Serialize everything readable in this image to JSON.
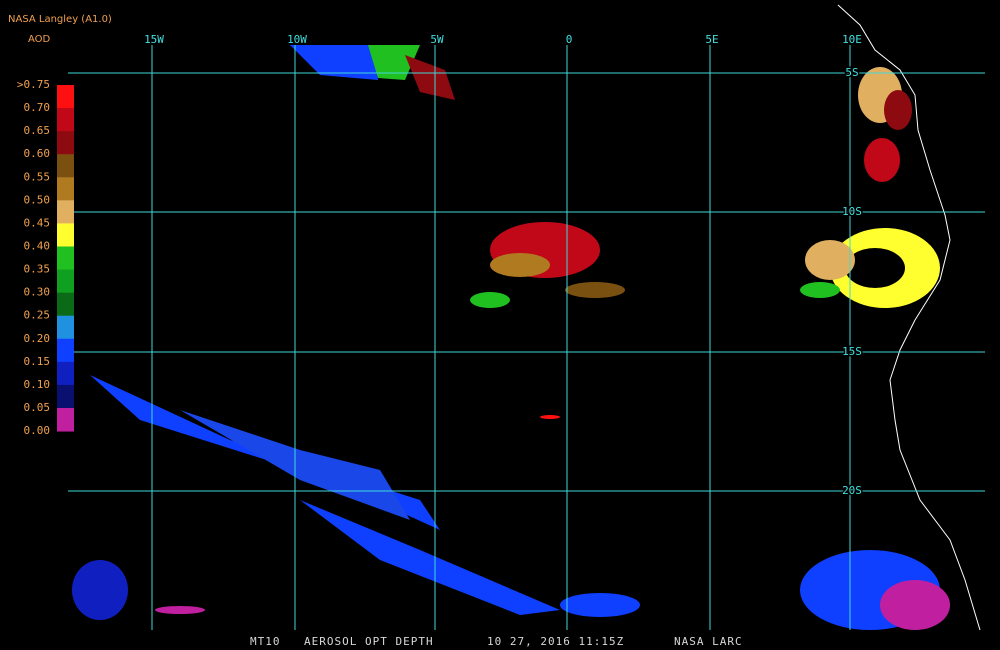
{
  "header": {
    "title": "NASA Langley (A1.0)",
    "subtitle": "AOD"
  },
  "legend": {
    "labels": [
      ">0.75",
      "0.70",
      "0.65",
      "0.60",
      "0.55",
      "0.50",
      "0.45",
      "0.40",
      "0.35",
      "0.30",
      "0.25",
      "0.20",
      "0.15",
      "0.10",
      "0.05",
      "0.00"
    ],
    "colors": [
      "#ff1010",
      "#c00818",
      "#8c0a10",
      "#7a5010",
      "#b07a20",
      "#e0b060",
      "#ffff30",
      "#20c020",
      "#10a020",
      "#0a6a18",
      "#2090e0",
      "#1040ff",
      "#1020c0",
      "#0a1070",
      "#c020a0"
    ]
  },
  "map": {
    "longitudes": [
      "15W",
      "10W",
      "5W",
      "0",
      "5E",
      "10E"
    ],
    "latitudes": [
      "5S",
      "10S",
      "15S",
      "20S"
    ]
  },
  "footer": {
    "items": [
      "MT10",
      "AEROSOL OPT DEPTH",
      "10 27, 2016 11:15Z",
      "NASA LARC"
    ]
  }
}
